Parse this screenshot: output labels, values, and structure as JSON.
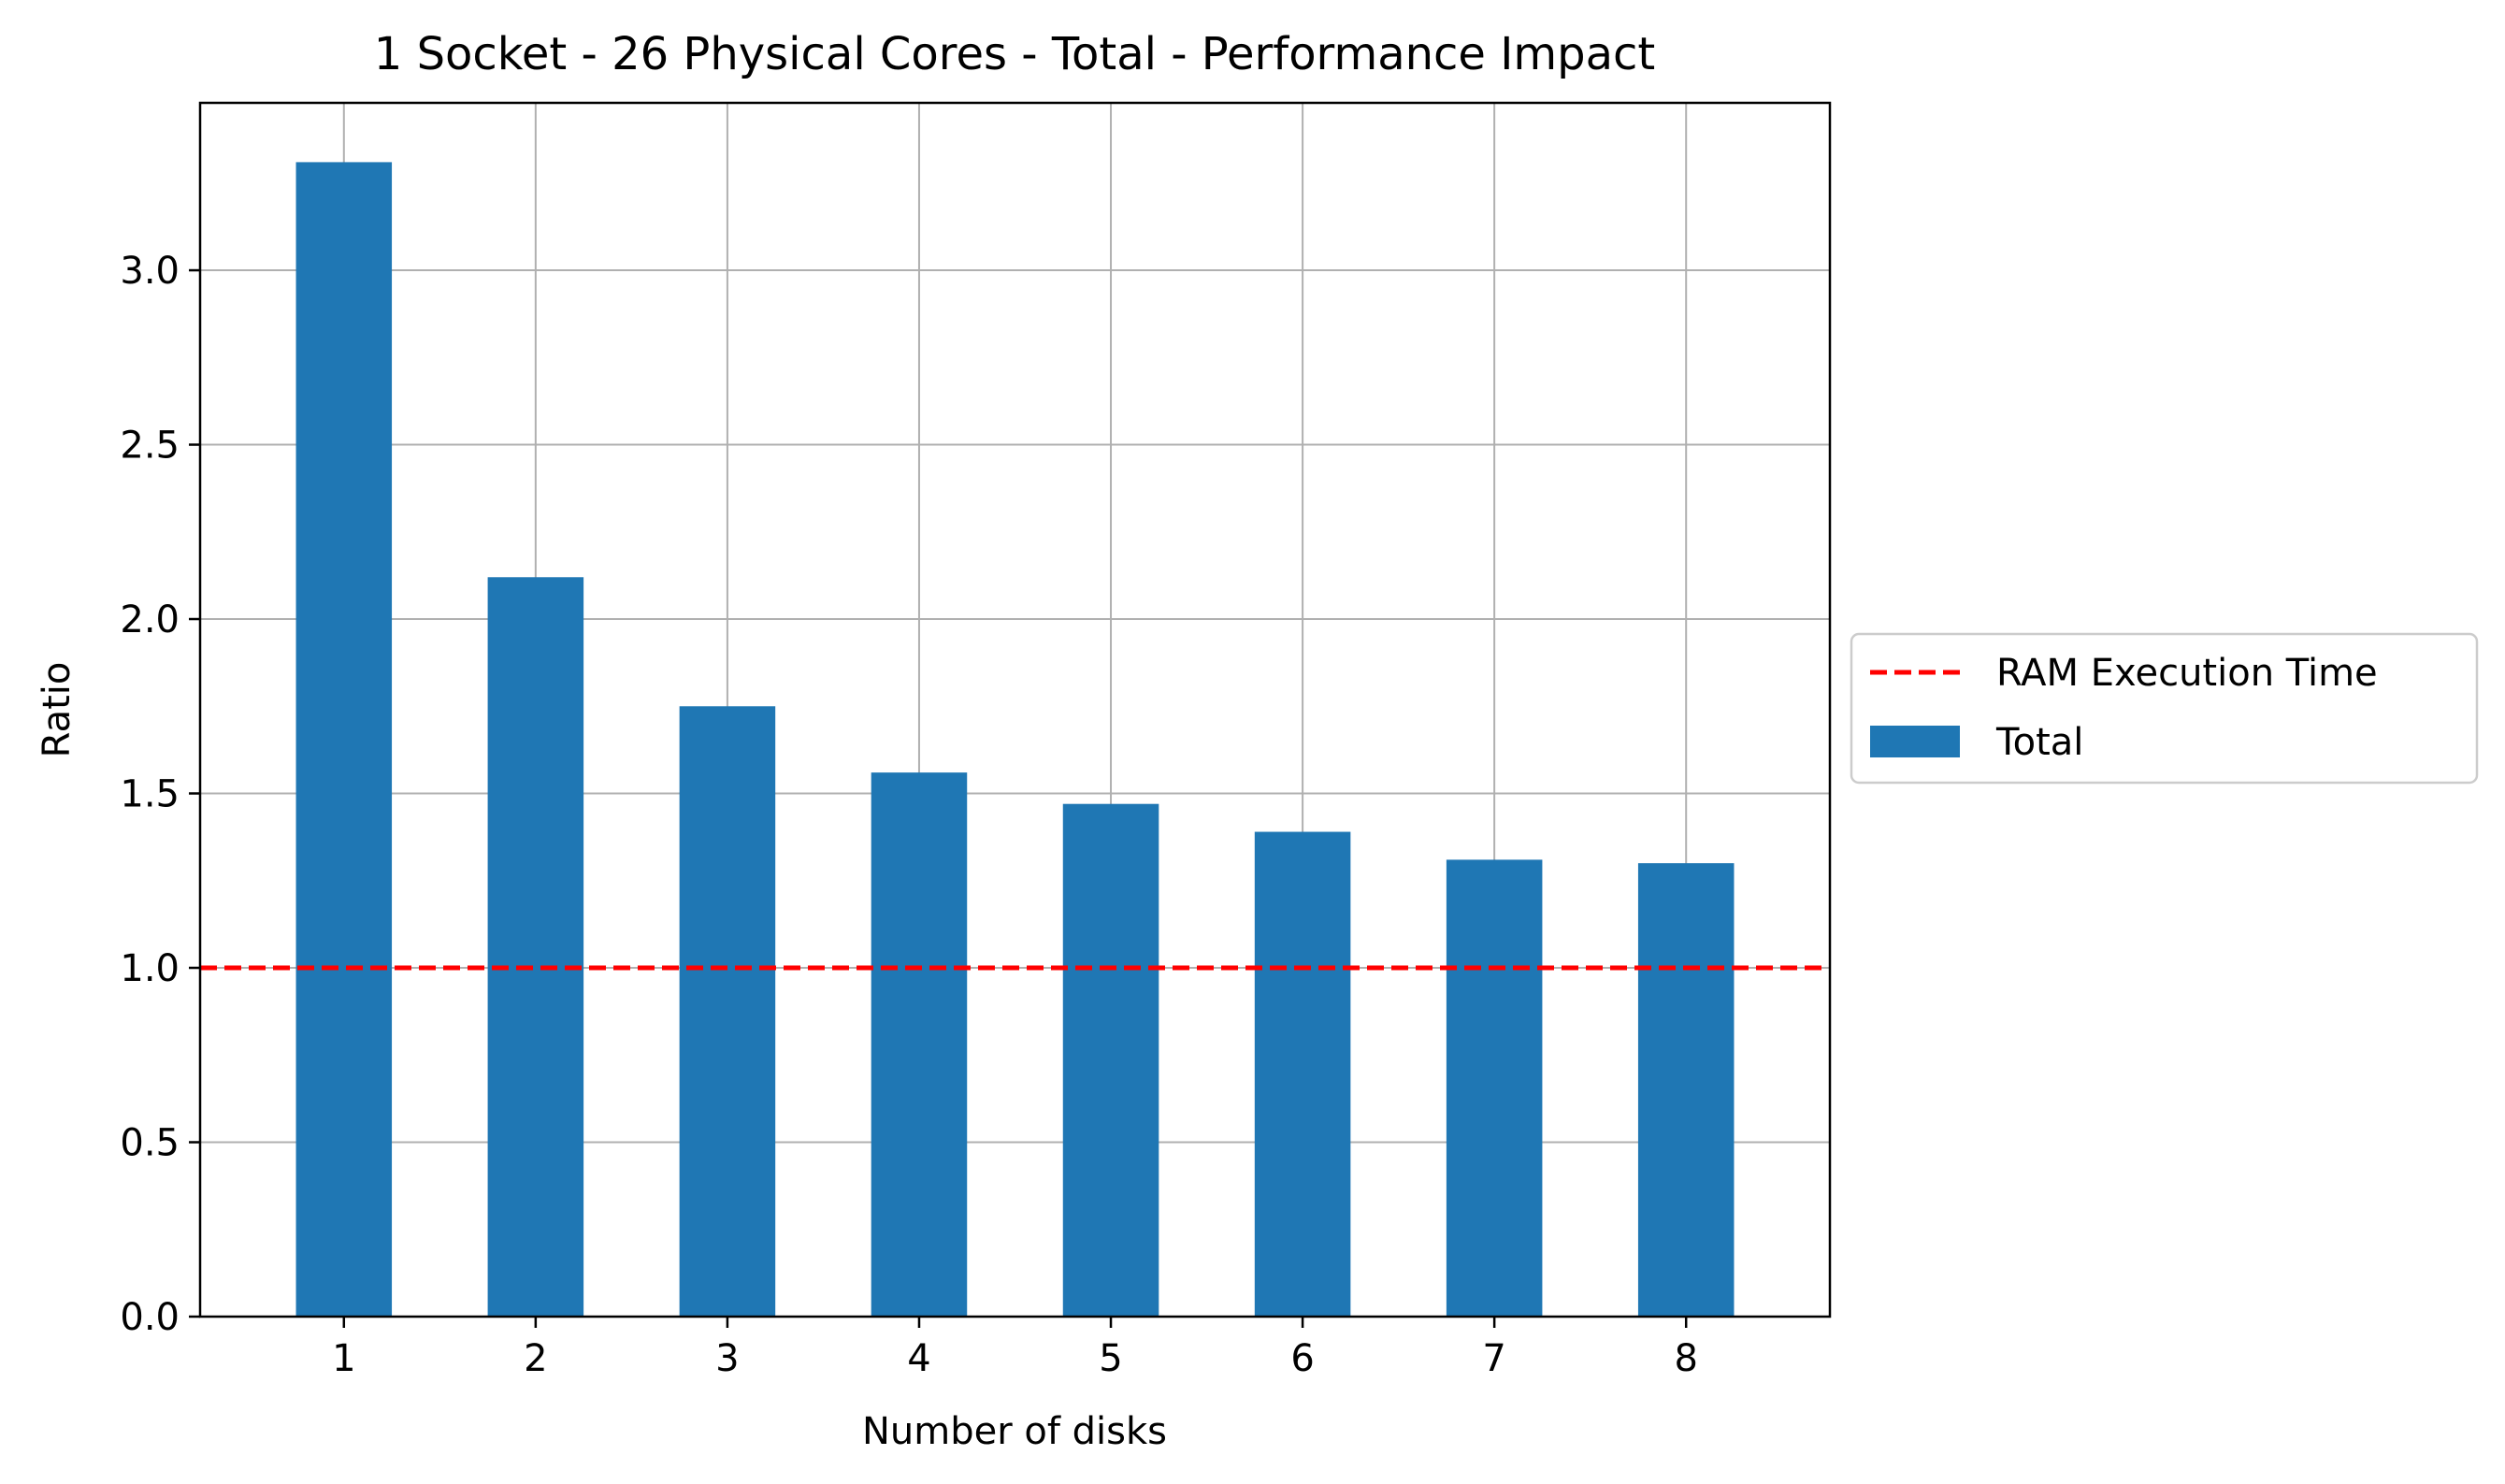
{
  "chart_data": {
    "type": "bar",
    "title": "1 Socket - 26 Physical Cores - Total - Performance Impact",
    "xlabel": "Number of disks",
    "ylabel": "Ratio",
    "categories": [
      "1",
      "2",
      "3",
      "4",
      "5",
      "6",
      "7",
      "8"
    ],
    "series": [
      {
        "name": "Total",
        "color": "#1f77b4",
        "values": [
          3.31,
          2.12,
          1.75,
          1.56,
          1.47,
          1.39,
          1.31,
          1.3
        ]
      }
    ],
    "reference_line": {
      "name": "RAM Execution Time",
      "y": 1.0,
      "color": "#ff0000",
      "style": "dashed"
    },
    "ylim": [
      0,
      3.48
    ],
    "yticks": [
      "0.0",
      "0.5",
      "1.0",
      "1.5",
      "2.0",
      "2.5",
      "3.0"
    ],
    "grid": true,
    "legend_position": "center-right outside"
  }
}
